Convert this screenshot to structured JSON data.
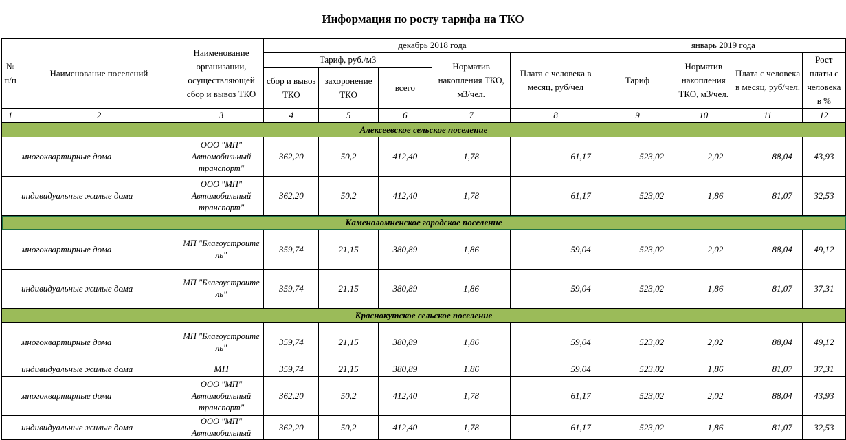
{
  "title": "Информация по росту тарифа на ТКО",
  "header": {
    "col_num": "№ п/п",
    "col_settlement": "Наименование поселений",
    "col_org": "Наименование организации, осуществляющей сбор и вывоз ТКО",
    "period_dec": "декабрь 2018 года",
    "period_jan": "январь 2019 года",
    "tariff_group": "Тариф, руб./м3",
    "collect": "сбор и вывоз ТКО",
    "disposal": "захоронение ТКО",
    "total": "всего",
    "norm_dec": "Норматив накопления ТКО, м3/чел.",
    "pay_dec": "Плата с человека в месяц, руб/чел",
    "tariff_jan": "Тариф",
    "norm_jan": "Норматив накопления ТКО, м3/чел.",
    "pay_jan": "Плата с человека в месяц, руб/чел.",
    "growth": "Рост платы с человека в %"
  },
  "col_numbers": [
    "1",
    "2",
    "3",
    "4",
    "5",
    "6",
    "7",
    "8",
    "9",
    "10",
    "11",
    "12"
  ],
  "groups": [
    {
      "name": "Алексеевское сельское поселение",
      "rows": [
        {
          "name": "многоквартирные дома",
          "org": "ООО \"МП\" Автомобильный транспорт\"",
          "collect": "362,20",
          "disposal": "50,2",
          "total": "412,40",
          "norm_dec": "1,78",
          "pay_dec": "61,17",
          "tariff_jan": "523,02",
          "norm_jan": "2,02",
          "pay_jan": "88,04",
          "growth": "43,93"
        },
        {
          "name": "индивидуальные жилые дома",
          "org": "ООО \"МП\" Автомобильный транспорт\"",
          "collect": "362,20",
          "disposal": "50,2",
          "total": "412,40",
          "norm_dec": "1,78",
          "pay_dec": "61,17",
          "tariff_jan": "523,02",
          "norm_jan": "1,86",
          "pay_jan": "81,07",
          "growth": "32,53"
        }
      ]
    },
    {
      "name": "Каменоломненское городское поселение",
      "rows": [
        {
          "name": "многоквартирные дома",
          "org": "МП \"Благоустроите ль\"",
          "collect": "359,74",
          "disposal": "21,15",
          "total": "380,89",
          "norm_dec": "1,86",
          "pay_dec": "59,04",
          "tariff_jan": "523,02",
          "norm_jan": "2,02",
          "pay_jan": "88,04",
          "growth": "49,12"
        },
        {
          "name": "индивидуальные жилые дома",
          "org": "МП \"Благоустроите ль\"",
          "collect": "359,74",
          "disposal": "21,15",
          "total": "380,89",
          "norm_dec": "1,86",
          "pay_dec": "59,04",
          "tariff_jan": "523,02",
          "norm_jan": "1,86",
          "pay_jan": "81,07",
          "growth": "37,31"
        }
      ]
    },
    {
      "name": "Краснокутское сельское поселение",
      "rows": [
        {
          "name": "многоквартирные дома",
          "org": "МП \"Благоустроите ль\"",
          "collect": "359,74",
          "disposal": "21,15",
          "total": "380,89",
          "norm_dec": "1,86",
          "pay_dec": "59,04",
          "tariff_jan": "523,02",
          "norm_jan": "2,02",
          "pay_jan": "88,04",
          "growth": "49,12"
        },
        {
          "name": "индивидуальные жилые дома",
          "org": "МП",
          "collect": "359,74",
          "disposal": "21,15",
          "total": "380,89",
          "norm_dec": "1,86",
          "pay_dec": "59,04",
          "tariff_jan": "523,02",
          "norm_jan": "1,86",
          "pay_jan": "81,07",
          "growth": "37,31"
        },
        {
          "name": "многоквартирные дома",
          "org": "ООО \"МП\" Автомобильный транспорт\"",
          "collect": "362,20",
          "disposal": "50,2",
          "total": "412,40",
          "norm_dec": "1,78",
          "pay_dec": "61,17",
          "tariff_jan": "523,02",
          "norm_jan": "2,02",
          "pay_jan": "88,04",
          "growth": "43,93"
        },
        {
          "name": "индивидуальные жилые дома",
          "org": "ООО \"МП\" Автомобильный",
          "collect": "362,20",
          "disposal": "50,2",
          "total": "412,40",
          "norm_dec": "1,78",
          "pay_dec": "61,17",
          "tariff_jan": "523,02",
          "norm_jan": "1,86",
          "pay_jan": "81,07",
          "growth": "32,53"
        }
      ]
    }
  ],
  "colors": {
    "group_fill": "#9bbb59",
    "selection": "#1e7145"
  }
}
